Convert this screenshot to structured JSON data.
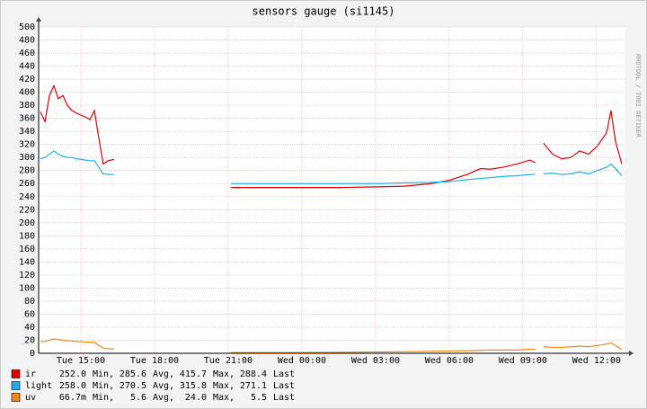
{
  "chart_data": {
    "type": "line",
    "title": "sensors gauge (si1145)",
    "side_text": "RRDTOOL / TOBI OETIKER",
    "x": [
      13.35,
      13.54,
      13.72,
      13.9,
      14.08,
      14.27,
      14.45,
      14.63,
      14.82,
      15.0,
      15.18,
      15.37,
      15.55,
      15.73,
      15.91,
      16.1,
      16.35,
      18.66,
      21.11,
      22.68,
      24.15,
      25.61,
      27.07,
      28.17,
      29.27,
      30.0,
      30.73,
      31.28,
      31.65,
      32.2,
      32.75,
      33.29,
      33.51,
      33.66,
      33.84,
      34.21,
      34.58,
      34.95,
      35.31,
      35.68,
      36.04,
      36.41,
      36.59,
      36.77,
      37.03
    ],
    "xlim": [
      13.28,
      37.14
    ],
    "xticks": [
      {
        "value": 15,
        "label": "Tue 15:00"
      },
      {
        "value": 18,
        "label": "Tue 18:00"
      },
      {
        "value": 21,
        "label": "Tue 21:00"
      },
      {
        "value": 24,
        "label": "Wed 00:00"
      },
      {
        "value": 27,
        "label": "Wed 03:00"
      },
      {
        "value": 30,
        "label": "Wed 06:00"
      },
      {
        "value": 33,
        "label": "Wed 09:00"
      },
      {
        "value": 36,
        "label": "Wed 12:00"
      }
    ],
    "ylim": [
      0,
      500
    ],
    "yticks": [
      0,
      20,
      40,
      60,
      80,
      100,
      120,
      140,
      160,
      180,
      200,
      220,
      240,
      260,
      280,
      300,
      320,
      340,
      360,
      380,
      400,
      420,
      440,
      460,
      480,
      500
    ],
    "grid": true,
    "stat_labels": [
      "Min,",
      "Avg,",
      "Max,",
      "Last"
    ],
    "series": [
      {
        "name": "ir",
        "color": "#e00000",
        "stats": [
          "252.0",
          "285.6",
          "415.7",
          "288.4"
        ],
        "values": [
          370,
          355,
          395,
          410,
          390,
          395,
          380,
          372,
          368,
          365,
          362,
          358,
          372,
          330,
          290,
          295,
          297,
          null,
          254,
          254,
          254,
          254,
          255,
          256,
          260,
          265,
          274,
          283,
          282,
          285,
          290,
          296,
          292,
          null,
          322,
          305,
          298,
          300,
          310,
          305,
          318,
          338,
          372,
          325,
          290
        ]
      },
      {
        "name": "light",
        "color": "#1ab2e8",
        "stats": [
          "258.0",
          "270.5",
          "315.8",
          "271.1"
        ],
        "values": [
          298,
          300,
          305,
          310,
          305,
          302,
          300,
          300,
          298,
          297,
          296,
          295,
          295,
          285,
          275,
          274,
          274,
          null,
          260,
          260,
          260,
          260,
          260,
          261,
          262,
          263,
          266,
          268,
          269,
          271,
          272,
          274,
          274,
          null,
          275,
          276,
          274,
          275,
          278,
          275,
          280,
          285,
          290,
          283,
          272
        ]
      },
      {
        "name": "uv",
        "color": "#f08a12",
        "stats": [
          "66.7m",
          "5.6",
          "24.0",
          "5.5"
        ],
        "values": [
          18,
          18,
          20,
          22,
          21,
          20,
          19,
          19,
          18,
          18,
          17,
          17,
          17,
          12,
          8,
          7,
          7,
          null,
          1,
          1,
          1,
          1.5,
          2,
          2.5,
          3,
          3.5,
          4,
          4.5,
          5,
          5,
          5,
          6,
          6,
          null,
          10,
          9,
          9,
          10,
          11,
          10,
          12,
          14,
          16,
          12,
          5.5
        ]
      }
    ]
  }
}
